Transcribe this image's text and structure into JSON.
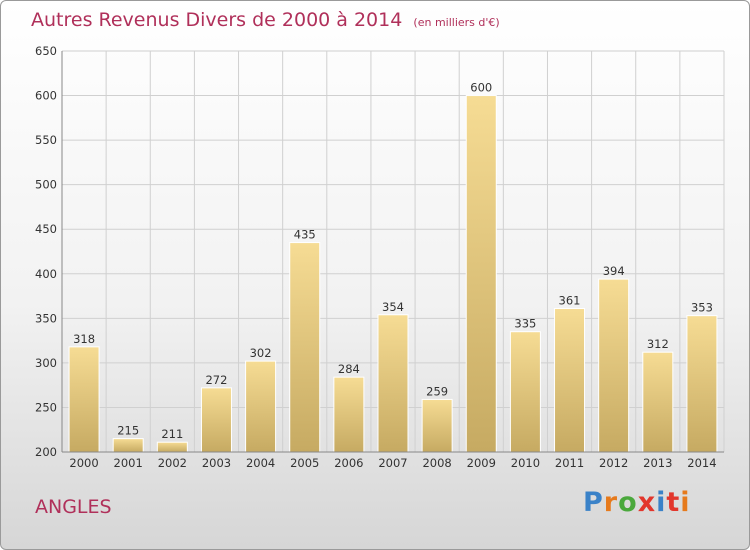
{
  "header": {
    "title": "Autres Revenus Divers de 2000 à 2014",
    "unit": "(en milliers d'€)"
  },
  "footer": {
    "town": "ANGLES",
    "logo_text": "Proxiti"
  },
  "colors": {
    "title": "#b0305a",
    "bar_light": "#f6dc94",
    "bar_dark": "#c6aa62",
    "logo": [
      "#3a82c8",
      "#e67a1c",
      "#4aa83c",
      "#e2362c",
      "#3a82c8",
      "#e2362c",
      "#e67a1c"
    ]
  },
  "chart_data": {
    "type": "bar",
    "categories": [
      "2000",
      "2001",
      "2002",
      "2003",
      "2004",
      "2005",
      "2006",
      "2007",
      "2008",
      "2009",
      "2010",
      "2011",
      "2012",
      "2013",
      "2014"
    ],
    "values": [
      318,
      215,
      211,
      272,
      302,
      435,
      284,
      354,
      259,
      600,
      335,
      361,
      394,
      312,
      353
    ],
    "title": "Autres Revenus Divers de 2000 à 2014",
    "ylim": [
      200,
      650
    ],
    "yticks": [
      200,
      250,
      300,
      350,
      400,
      450,
      500,
      550,
      600,
      650
    ],
    "grid": true,
    "data_labels": true
  }
}
